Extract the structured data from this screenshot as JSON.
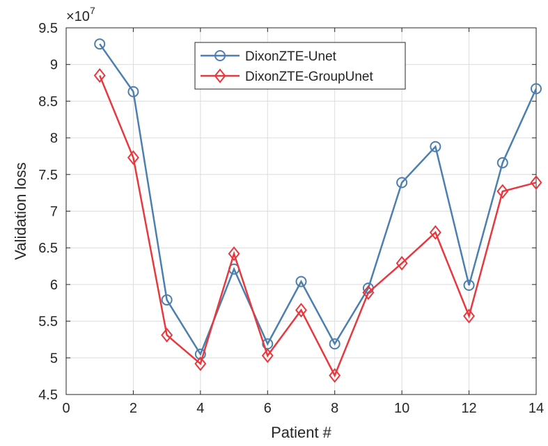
{
  "chart_data": {
    "type": "line",
    "title": "",
    "xlabel": "Patient #",
    "ylabel": "Validation loss",
    "exponent_label": "×10",
    "exponent_power": "7",
    "xlim": [
      0,
      14
    ],
    "ylim": [
      4.5,
      9.5
    ],
    "xticks": [
      "0",
      "2",
      "4",
      "6",
      "8",
      "10",
      "12",
      "14"
    ],
    "yticks": [
      "4.5",
      "5",
      "5.5",
      "6",
      "6.5",
      "7",
      "7.5",
      "8",
      "8.5",
      "9",
      "9.5"
    ],
    "grid": true,
    "legend_position": "top-center",
    "x": [
      1,
      2,
      3,
      4,
      5,
      6,
      7,
      8,
      9,
      10,
      11,
      12,
      13,
      14
    ],
    "series": [
      {
        "name": "DixonZTE-Unet",
        "color": "#4a7fb0",
        "marker": "circle",
        "values": [
          9.28,
          8.63,
          5.79,
          5.05,
          6.21,
          5.19,
          6.04,
          5.19,
          5.95,
          7.39,
          7.88,
          5.99,
          7.66,
          8.67
        ]
      },
      {
        "name": "DixonZTE-GroupUnet",
        "color": "#e8383d",
        "marker": "diamond",
        "values": [
          8.85,
          7.73,
          5.31,
          4.92,
          6.42,
          5.03,
          5.65,
          4.76,
          5.89,
          6.29,
          6.71,
          5.57,
          7.27,
          7.39
        ]
      }
    ]
  }
}
